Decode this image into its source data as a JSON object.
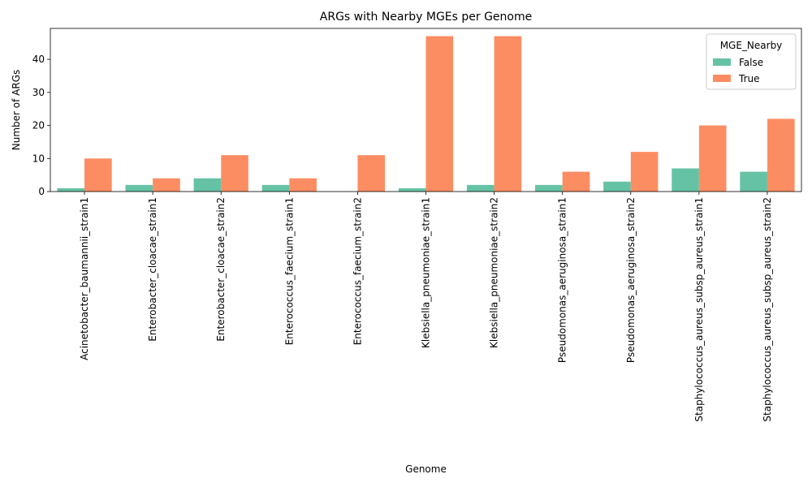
{
  "chart_data": {
    "type": "bar",
    "title": "ARGs with Nearby MGEs per Genome",
    "xlabel": "Genome",
    "ylabel": "Number of ARGs",
    "categories": [
      "Acinetobacter_baumannii_strain1",
      "Enterobacter_cloacae_strain1",
      "Enterobacter_cloacae_strain2",
      "Enterococcus_faecium_strain1",
      "Enterococcus_faecium_strain2",
      "Klebsiella_pneumoniae_strain1",
      "Klebsiella_pneumoniae_strain2",
      "Pseudomonas_aeruginosa_strain1",
      "Pseudomonas_aeruginosa_strain2",
      "Staphylococcus_aureus_subsp_aureus_strain1",
      "Staphylococcus_aureus_subsp_aureus_strain2"
    ],
    "series": [
      {
        "name": "False",
        "color": "#66c2a5",
        "values": [
          1,
          2,
          4,
          2,
          0,
          1,
          2,
          2,
          3,
          7,
          6
        ]
      },
      {
        "name": "True",
        "color": "#fc8d62",
        "values": [
          10,
          4,
          11,
          4,
          11,
          47,
          47,
          6,
          12,
          20,
          22
        ]
      }
    ],
    "ylim": [
      0,
      49.35
    ],
    "yticks": [
      0,
      10,
      20,
      30,
      40
    ],
    "legend": {
      "title": "MGE_Nearby",
      "placement": "top-right"
    },
    "grid": false
  }
}
